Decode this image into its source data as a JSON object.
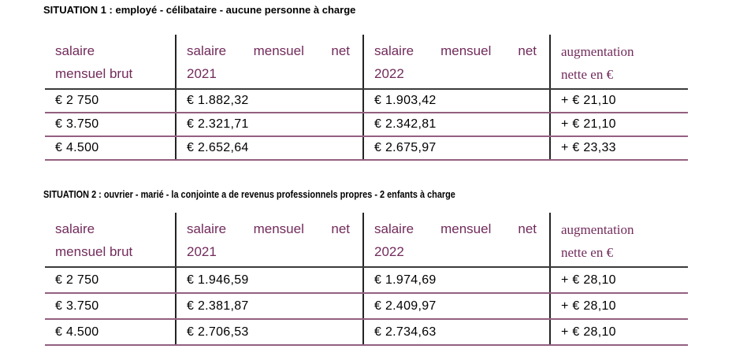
{
  "colors": {
    "header_text": "#722b5b",
    "row_separator": "#936080",
    "column_divider": "#242424",
    "header_underline": "#3b3b3b",
    "body_text": "#000000",
    "title_text": "#000000",
    "background": "#ffffff"
  },
  "situations": [
    {
      "title": "SITUATION 1 : employé - célibataire - aucune personne à charge",
      "table": {
        "headers": {
          "col1": {
            "line1": "salaire",
            "line2": "mensuel brut"
          },
          "col2": {
            "w1": "salaire",
            "w2": "mensuel",
            "w3": "net",
            "line2": "2021"
          },
          "col3": {
            "w1": "salaire",
            "w2": "mensuel",
            "w3": "net",
            "line2": "2022"
          },
          "col4": {
            "line1": "augmentation",
            "line2": "nette en €"
          }
        },
        "rows": [
          [
            "€ 2 750",
            "€ 1.882,32",
            "€ 1.903,42",
            "+ € 21,10"
          ],
          [
            "€ 3.750",
            "€ 2.321,71",
            "€ 2.342,81",
            "+ € 21,10"
          ],
          [
            "€ 4.500",
            "€ 2.652,64",
            "€ 2.675,97",
            "+ € 23,33"
          ]
        ]
      }
    },
    {
      "title": "SITUATION 2 : ouvrier - marié - la conjointe a de revenus professionnels propres - 2 enfants à charge",
      "table": {
        "headers": {
          "col1": {
            "line1": "salaire",
            "line2": "mensuel brut"
          },
          "col2": {
            "w1": "salaire",
            "w2": "mensuel",
            "w3": "net",
            "line2": "2021"
          },
          "col3": {
            "w1": "salaire",
            "w2": "mensuel",
            "w3": "net",
            "line2": "2022"
          },
          "col4": {
            "line1": "augmentation",
            "line2": "nette en €"
          }
        },
        "rows": [
          [
            "€ 2 750",
            "€ 1.946,59",
            "€ 1.974,69",
            "+ € 28,10"
          ],
          [
            "€ 3.750",
            "€ 2.381,87",
            "€ 2.409,97",
            "+ € 28,10"
          ],
          [
            "€ 4.500",
            "€ 2.706,53",
            "€ 2.734,63",
            "+ € 28,10"
          ]
        ]
      }
    }
  ]
}
